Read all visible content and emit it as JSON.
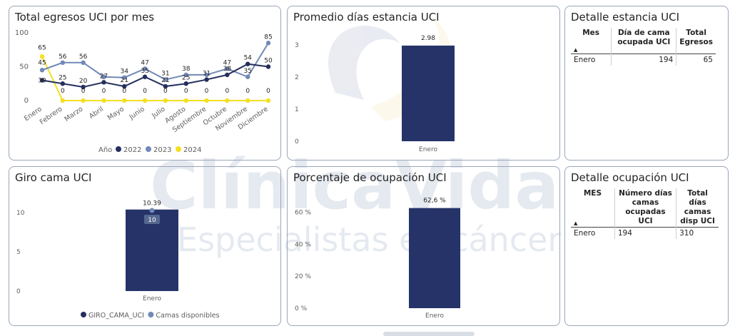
{
  "colors": {
    "c2022": "#252f5e",
    "c2023": "#7189b8",
    "c2024": "#f5df22",
    "bar": "#253368"
  },
  "watermark": {
    "line1": "ClínicaVida",
    "line2": "Especialistas en cáncer"
  },
  "panels": {
    "egresos": {
      "title": "Total egresos UCI por mes",
      "legend_title": "Año",
      "chart_data": {
        "type": "line",
        "categories": [
          "Enero",
          "Febrero",
          "Marzo",
          "Abril",
          "Mayo",
          "Junio",
          "Julio",
          "Agosto",
          "Septiembre",
          "Octubre",
          "Noviembre",
          "Diciembre"
        ],
        "ylim": [
          0,
          100
        ],
        "yticks": [
          0,
          50,
          100
        ],
        "series": [
          {
            "name": "2022",
            "values": [
              30,
              25,
              20,
              27,
              21,
              35,
              21,
              25,
              31,
              38,
              54,
              50
            ]
          },
          {
            "name": "2023",
            "values": [
              45,
              56,
              56,
              35,
              34,
              47,
              31,
              38,
              38,
              47,
              35,
              85
            ]
          },
          {
            "name": "2024",
            "values": [
              65,
              0,
              0,
              0,
              0,
              0,
              0,
              0,
              0,
              0,
              0,
              0
            ]
          }
        ],
        "data_labels": [
          {
            "series": "2024",
            "index": 0,
            "text": "65"
          },
          {
            "series": "2023",
            "index": 0,
            "text": "45"
          },
          {
            "series": "2022",
            "index": 0,
            "text": "30"
          },
          {
            "series": "2023",
            "index": 1,
            "text": "56"
          },
          {
            "series": "2022",
            "index": 1,
            "text": "25"
          },
          {
            "series": "2023",
            "index": 2,
            "text": "56"
          },
          {
            "series": "2022",
            "index": 2,
            "text": "20"
          },
          {
            "series": "2022",
            "index": 3,
            "text": "27"
          },
          {
            "series": "2023",
            "index": 4,
            "text": "34"
          },
          {
            "series": "2022",
            "index": 4,
            "text": "21"
          },
          {
            "series": "2023",
            "index": 5,
            "text": "47"
          },
          {
            "series": "2022",
            "index": 5,
            "text": "35"
          },
          {
            "series": "2023",
            "index": 6,
            "text": "31"
          },
          {
            "series": "2022",
            "index": 6,
            "text": "21"
          },
          {
            "series": "2023",
            "index": 7,
            "text": "38"
          },
          {
            "series": "2022",
            "index": 7,
            "text": "25"
          },
          {
            "series": "2022",
            "index": 8,
            "text": "31"
          },
          {
            "series": "2022",
            "index": 9,
            "text": "38"
          },
          {
            "series": "2023",
            "index": 9,
            "text": "47"
          },
          {
            "series": "2022",
            "index": 10,
            "text": "54"
          },
          {
            "series": "2023",
            "index": 10,
            "text": "35"
          },
          {
            "series": "2023",
            "index": 11,
            "text": "85"
          },
          {
            "series": "2022",
            "index": 11,
            "text": "50"
          }
        ],
        "zero_labels_2024": [
          "0",
          "0",
          "0",
          "0",
          "0",
          "0",
          "0",
          "0",
          "0",
          "0",
          "0"
        ],
        "legend_position": "bottom"
      }
    },
    "promedio": {
      "title": "Promedio días estancia UCI",
      "chart_data": {
        "type": "bar",
        "categories": [
          "Enero"
        ],
        "values": [
          2.98
        ],
        "data_label": "2.98",
        "ylim": [
          0,
          3.2
        ],
        "yticks": [
          0,
          1,
          2,
          3
        ]
      }
    },
    "detalle_estancia": {
      "title": "Detalle estancia UCI",
      "columns": [
        "Mes",
        "Día de cama ocupada UCI",
        "Total Egresos"
      ],
      "rows": [
        [
          "Enero",
          "194",
          "65"
        ]
      ]
    },
    "giro": {
      "title": "Giro cama UCI",
      "chart_data": {
        "type": "bar",
        "categories": [
          "Enero"
        ],
        "series": [
          {
            "name": "GIRO_CAMA_UCI",
            "values": [
              10.39
            ]
          },
          {
            "name": "Camas disponibles",
            "values": [
              10
            ]
          }
        ],
        "data_label": "10.39",
        "marker_label": "10",
        "ylim": [
          0,
          11
        ],
        "yticks": [
          0,
          5,
          10
        ]
      }
    },
    "ocupacion": {
      "title": "Porcentaje de ocupación UCI",
      "chart_data": {
        "type": "bar",
        "categories": [
          "Enero"
        ],
        "values": [
          62.6
        ],
        "data_label": "62,6 %",
        "ylim": [
          0,
          66
        ],
        "yticks": [
          "0 %",
          "20 %",
          "40 %",
          "60 %"
        ]
      }
    },
    "detalle_ocupacion": {
      "title": "Detalle ocupación UCI",
      "columns": [
        "MES",
        "Número días camas ocupadas UCI",
        "Total días camas disp UCI"
      ],
      "rows": [
        [
          "Enero",
          "194",
          "310"
        ]
      ]
    }
  }
}
